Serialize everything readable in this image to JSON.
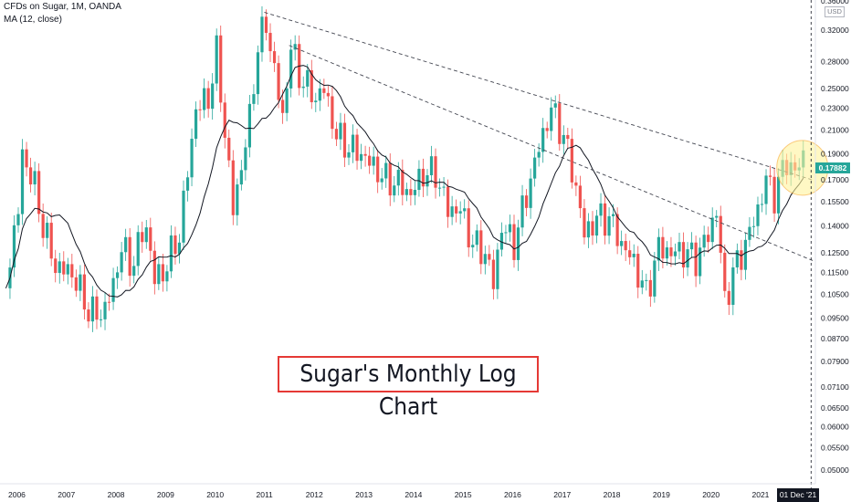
{
  "header": {
    "symbol_line": "CFDs on Sugar, 1M, OANDA",
    "indicator_line": "MA (12, close)"
  },
  "price_axis": {
    "currency": "USD",
    "labels": [
      "0.32000",
      "0.28000",
      "0.25000",
      "0.23000",
      "0.21000",
      "0.19000",
      "0.17000",
      "0.15500",
      "0.14000",
      "0.12500",
      "0.11500",
      "0.10500",
      "0.09500",
      "0.08700",
      "0.07900",
      "0.07100",
      "0.06500",
      "0.06000",
      "0.05500",
      "0.05000"
    ],
    "last_price": "0.17882",
    "top_partial_label": "0.36000"
  },
  "time_axis": {
    "labels": [
      "2006",
      "2007",
      "2008",
      "2009",
      "2010",
      "2011",
      "2012",
      "2013",
      "2014",
      "2015",
      "2016",
      "2017",
      "2018",
      "2019",
      "2020",
      "2021"
    ],
    "cursor_label": "01 Dec '21"
  },
  "annotation": {
    "title": "Sugar's Monthly Log Chart"
  },
  "colors": {
    "up": "#26a69a",
    "down": "#ef5350",
    "ma_line": "#131722",
    "trendline": "#434651",
    "highlight_fill": "#fff59d",
    "highlight_stroke": "#f9a825",
    "title_border": "#e53935"
  },
  "chart_data": {
    "type": "candlestick",
    "scale": "log",
    "interval": "1M",
    "ylim": [
      0.048,
      0.36
    ],
    "title": "Sugar's Monthly Log Chart",
    "series_name": "CFDs on Sugar",
    "indicator": {
      "name": "MA (12, close)",
      "period": 12
    },
    "anchors": [
      [
        "2005-10",
        0.11
      ],
      [
        "2006-01",
        0.15
      ],
      [
        "2006-02",
        0.19
      ],
      [
        "2006-05",
        0.165
      ],
      [
        "2006-07",
        0.14
      ],
      [
        "2006-10",
        0.118
      ],
      [
        "2007-02",
        0.115
      ],
      [
        "2007-06",
        0.098
      ],
      [
        "2007-09",
        0.096
      ],
      [
        "2007-12",
        0.108
      ],
      [
        "2008-02",
        0.13
      ],
      [
        "2008-04",
        0.118
      ],
      [
        "2008-08",
        0.14
      ],
      [
        "2008-10",
        0.112
      ],
      [
        "2008-12",
        0.115
      ],
      [
        "2009-04",
        0.135
      ],
      [
        "2009-08",
        0.23
      ],
      [
        "2009-11",
        0.24
      ],
      [
        "2010-01",
        0.29
      ],
      [
        "2010-05",
        0.15
      ],
      [
        "2010-07",
        0.18
      ],
      [
        "2010-09",
        0.22
      ],
      [
        "2010-11",
        0.3
      ],
      [
        "2011-01",
        0.33
      ],
      [
        "2011-05",
        0.22
      ],
      [
        "2011-07",
        0.3
      ],
      [
        "2011-09",
        0.265
      ],
      [
        "2012-01",
        0.24
      ],
      [
        "2012-03",
        0.25
      ],
      [
        "2012-06",
        0.205
      ],
      [
        "2012-09",
        0.195
      ],
      [
        "2012-12",
        0.19
      ],
      [
        "2013-03",
        0.18
      ],
      [
        "2013-06",
        0.17
      ],
      [
        "2013-09",
        0.168
      ],
      [
        "2013-12",
        0.16
      ],
      [
        "2014-03",
        0.175
      ],
      [
        "2014-06",
        0.175
      ],
      [
        "2014-09",
        0.15
      ],
      [
        "2014-12",
        0.15
      ],
      [
        "2015-03",
        0.13
      ],
      [
        "2015-06",
        0.125
      ],
      [
        "2015-08",
        0.11
      ],
      [
        "2015-10",
        0.14
      ],
      [
        "2016-01",
        0.13
      ],
      [
        "2016-04",
        0.16
      ],
      [
        "2016-07",
        0.195
      ],
      [
        "2016-10",
        0.23
      ],
      [
        "2017-01",
        0.205
      ],
      [
        "2017-04",
        0.165
      ],
      [
        "2017-06",
        0.135
      ],
      [
        "2017-09",
        0.145
      ],
      [
        "2017-12",
        0.145
      ],
      [
        "2018-03",
        0.13
      ],
      [
        "2018-06",
        0.12
      ],
      [
        "2018-09",
        0.105
      ],
      [
        "2018-12",
        0.128
      ],
      [
        "2019-03",
        0.125
      ],
      [
        "2019-06",
        0.126
      ],
      [
        "2019-09",
        0.122
      ],
      [
        "2019-12",
        0.135
      ],
      [
        "2020-02",
        0.15
      ],
      [
        "2020-04",
        0.102
      ],
      [
        "2020-06",
        0.115
      ],
      [
        "2020-09",
        0.13
      ],
      [
        "2020-12",
        0.15
      ],
      [
        "2021-02",
        0.17
      ],
      [
        "2021-04",
        0.16
      ],
      [
        "2021-07",
        0.185
      ],
      [
        "2021-09",
        0.175
      ],
      [
        "2021-11",
        0.188
      ]
    ],
    "trendlines": [
      {
        "from": [
          "2011-01",
          0.345
        ],
        "to": [
          "2021-12",
          0.17
        ]
      },
      {
        "from": [
          "2011-07",
          0.3
        ],
        "to": [
          "2021-12",
          0.121
        ]
      }
    ],
    "highlight": {
      "center": [
        "2021-09",
        0.179
      ],
      "note": "circled latest candles"
    }
  }
}
